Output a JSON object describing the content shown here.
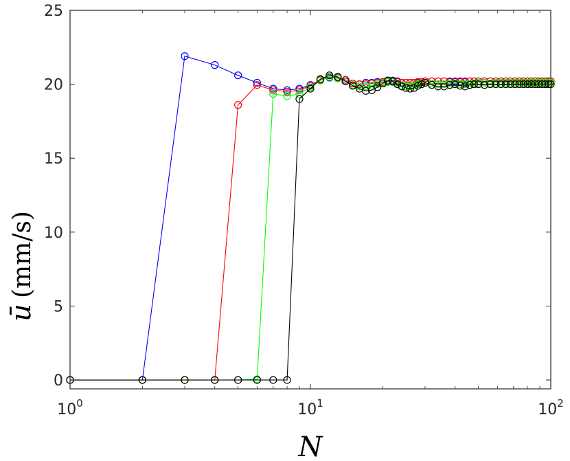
{
  "chart_data": {
    "type": "line",
    "xscale": "log",
    "xlim": [
      1,
      100
    ],
    "ylim": [
      0,
      25
    ],
    "xticks": [
      1,
      10,
      100
    ],
    "xtick_labels": [
      {
        "base": "10",
        "exp": "0"
      },
      {
        "base": "10",
        "exp": "1"
      },
      {
        "base": "10",
        "exp": "2"
      }
    ],
    "yticks": [
      0,
      5,
      10,
      15,
      20,
      25
    ],
    "ytick_labels": [
      "0",
      "5",
      "10",
      "15",
      "20",
      "25"
    ],
    "xlabel": "N",
    "ylabel": {
      "symbol": "ū",
      "unit": "(mm/s)"
    },
    "grid": false,
    "legend": "none",
    "series": [
      {
        "color": "#0000ff",
        "x": [
          1,
          2,
          3,
          4,
          5,
          6,
          7,
          8,
          9,
          10,
          11,
          12,
          13,
          14,
          15,
          16,
          17,
          18,
          19,
          20,
          21,
          22,
          23,
          24,
          25,
          26,
          27,
          28,
          29,
          30,
          32,
          34,
          36,
          38,
          40,
          42,
          44,
          46,
          48,
          50,
          53,
          56,
          59,
          62,
          65,
          68,
          71,
          74,
          77,
          80,
          83,
          86,
          89,
          92,
          95,
          98,
          100
        ],
        "y": [
          0,
          0,
          21.9,
          21.3,
          20.6,
          20.1,
          19.7,
          19.6,
          19.7,
          19.95,
          20.3,
          20.45,
          20.4,
          20.2,
          20.05,
          20.0,
          20.1,
          20.1,
          20.15,
          20.15,
          20.25,
          20.25,
          20.2,
          20.1,
          20.1,
          20.1,
          20.1,
          20.1,
          20.15,
          20.2,
          20.2,
          20.2,
          20.2,
          20.15,
          20.15,
          20.15,
          20.15,
          20.2,
          20.2,
          20.2,
          20.2,
          20.2,
          20.2,
          20.2,
          20.2,
          20.2,
          20.2,
          20.2,
          20.2,
          20.2,
          20.2,
          20.2,
          20.2,
          20.2,
          20.2,
          20.2,
          20.2
        ]
      },
      {
        "color": "#ff0000",
        "x": [
          1,
          2,
          3,
          4,
          5,
          6,
          7,
          8,
          9,
          10,
          11,
          12,
          13,
          14,
          15,
          16,
          17,
          18,
          19,
          20,
          21,
          22,
          23,
          24,
          25,
          26,
          27,
          28,
          29,
          30,
          32,
          34,
          36,
          38,
          40,
          42,
          44,
          46,
          48,
          50,
          53,
          56,
          59,
          62,
          65,
          68,
          71,
          74,
          77,
          80,
          83,
          86,
          89,
          92,
          95,
          98,
          100
        ],
        "y": [
          0,
          0,
          0,
          0,
          18.6,
          19.95,
          19.6,
          19.5,
          19.6,
          19.9,
          20.3,
          20.5,
          20.45,
          20.3,
          20.05,
          20.0,
          20.0,
          20.05,
          20.1,
          20.15,
          20.2,
          20.2,
          20.15,
          20.1,
          20.1,
          20.1,
          20.1,
          20.15,
          20.15,
          20.2,
          20.2,
          20.2,
          20.2,
          20.2,
          20.2,
          20.2,
          20.2,
          20.2,
          20.2,
          20.2,
          20.2,
          20.2,
          20.2,
          20.2,
          20.2,
          20.2,
          20.2,
          20.2,
          20.2,
          20.2,
          20.2,
          20.2,
          20.2,
          20.2,
          20.2,
          20.2,
          20.2
        ]
      },
      {
        "color": "#00ff00",
        "x": [
          1,
          2,
          3,
          4,
          5,
          6,
          7,
          8,
          9,
          10,
          11,
          12,
          13,
          14,
          15,
          16,
          17,
          18,
          19,
          20,
          21,
          22,
          23,
          24,
          25,
          26,
          27,
          28,
          29,
          30,
          32,
          34,
          36,
          38,
          40,
          42,
          44,
          46,
          48,
          50,
          53,
          56,
          59,
          62,
          65,
          68,
          71,
          74,
          77,
          80,
          83,
          86,
          89,
          92,
          95,
          98,
          100
        ],
        "y": [
          0,
          0,
          0,
          0,
          0,
          0.05,
          19.35,
          19.2,
          19.35,
          19.8,
          20.25,
          20.5,
          20.4,
          20.2,
          19.95,
          19.85,
          19.85,
          19.9,
          20.0,
          20.1,
          20.15,
          20.15,
          20.05,
          19.9,
          19.85,
          19.85,
          19.9,
          20.0,
          20.05,
          20.1,
          20.05,
          20.0,
          20.0,
          20.05,
          20.05,
          20.0,
          20.0,
          20.05,
          20.05,
          20.1,
          20.1,
          20.05,
          20.1,
          20.1,
          20.1,
          20.1,
          20.1,
          20.1,
          20.1,
          20.1,
          20.1,
          20.1,
          20.1,
          20.1,
          20.1,
          20.1,
          20.1
        ]
      },
      {
        "color": "#000000",
        "x": [
          1,
          2,
          3,
          4,
          5,
          6,
          7,
          8,
          9,
          10,
          11,
          12,
          13,
          14,
          15,
          16,
          17,
          18,
          19,
          20,
          21,
          22,
          23,
          24,
          25,
          26,
          27,
          28,
          29,
          30,
          32,
          34,
          36,
          38,
          40,
          42,
          44,
          46,
          48,
          50,
          53,
          56,
          59,
          62,
          65,
          68,
          71,
          74,
          77,
          80,
          83,
          86,
          89,
          92,
          95,
          98,
          100
        ],
        "y": [
          0,
          0,
          0,
          0,
          0,
          0,
          0,
          0,
          19.0,
          19.7,
          20.35,
          20.6,
          20.5,
          20.2,
          19.9,
          19.7,
          19.55,
          19.6,
          19.8,
          20.05,
          20.25,
          20.2,
          20.0,
          19.85,
          19.75,
          19.7,
          19.75,
          19.9,
          20.0,
          20.1,
          19.95,
          19.85,
          19.85,
          19.95,
          20.0,
          19.9,
          19.85,
          19.95,
          20.0,
          20.0,
          19.95,
          20.0,
          20.0,
          20.0,
          20.0,
          20.0,
          20.0,
          20.0,
          20.0,
          20.0,
          20.0,
          20.0,
          20.0,
          20.0,
          20.0,
          20.0,
          20.0
        ]
      }
    ]
  }
}
